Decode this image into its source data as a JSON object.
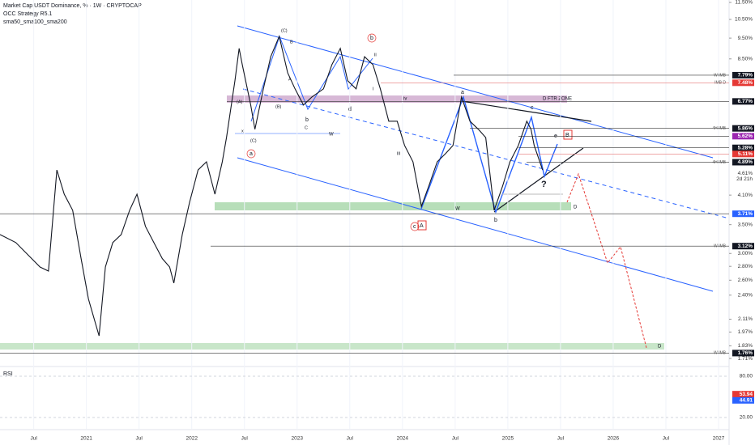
{
  "chart_data": {
    "type": "line",
    "title": "Market Cap USDT Dominance, % · 1W · CRYPTOCAP",
    "subtitles": [
      "OCC Strategy R5.1",
      "sma50_sma100_sma200"
    ],
    "log": true,
    "color": "#131722",
    "xlim": [
      2020.18,
      2027.1
    ],
    "ylim": [
      1.645,
      11.65
    ],
    "xticks": [
      {
        "value": 2020.5,
        "label": "Jul"
      },
      2021,
      {
        "value": 2021.5,
        "label": "Jul"
      },
      2022,
      {
        "value": 2022.5,
        "label": "Jul"
      },
      2023,
      {
        "value": 2023.5,
        "label": "Jul"
      },
      2024,
      {
        "value": 2024.5,
        "label": "Jul"
      },
      2025,
      {
        "value": 2025.5,
        "label": "Jul"
      },
      2026,
      {
        "value": 2026.5,
        "label": "Jul"
      },
      2027
    ],
    "yticks": [
      {
        "value": 11.5,
        "label": "11.50%"
      },
      {
        "value": 10.5,
        "label": "10.50%"
      },
      {
        "value": 9.5,
        "label": "9.50%"
      },
      {
        "value": 8.5,
        "label": "8.50%"
      },
      {
        "value": 4.1,
        "label": "4.10%"
      },
      {
        "value": 3.5,
        "label": "3.50%"
      },
      {
        "value": 3.0,
        "label": "3.00%"
      },
      {
        "value": 2.8,
        "label": "2.80%"
      },
      {
        "value": 2.6,
        "label": "2.60%"
      },
      {
        "value": 2.4,
        "label": "2.40%"
      },
      {
        "value": 2.11,
        "label": "2.11%"
      },
      {
        "value": 1.97,
        "label": "1.97%"
      },
      {
        "value": 1.83,
        "label": "1.83%"
      },
      {
        "value": 1.71,
        "label": "1.71%"
      }
    ],
    "x": [
      2020.18,
      2020.33,
      2020.48,
      2020.56,
      2020.64,
      2020.72,
      2020.79,
      2020.87,
      2020.95,
      2021.02,
      2021.12,
      2021.18,
      2021.25,
      2021.33,
      2021.41,
      2021.48,
      2021.56,
      2021.64,
      2021.72,
      2021.79,
      2021.83,
      2021.91,
      2021.98,
      2022.06,
      2022.14,
      2022.22,
      2022.29,
      2022.33,
      2022.41,
      2022.45,
      2022.48,
      2022.56,
      2022.6,
      2022.68,
      2022.75,
      2022.83,
      2022.91,
      2022.98,
      2023.06,
      2023.14,
      2023.25,
      2023.33,
      2023.41,
      2023.48,
      2023.56,
      2023.64,
      2023.72,
      2023.79,
      2023.87,
      2023.95,
      2024.02,
      2024.1,
      2024.18,
      2024.25,
      2024.33,
      2024.41,
      2024.48,
      2024.56,
      2024.64,
      2024.72,
      2024.79,
      2024.87,
      2024.95,
      2025.02,
      2025.1,
      2025.18,
      2025.22,
      2025.25,
      2025.33
    ],
    "values": [
      3.32,
      3.18,
      2.92,
      2.79,
      2.73,
      4.69,
      4.12,
      3.78,
      2.92,
      2.35,
      1.93,
      2.79,
      3.18,
      3.32,
      3.78,
      4.12,
      3.47,
      3.18,
      2.92,
      2.79,
      2.56,
      3.32,
      3.95,
      4.69,
      4.9,
      4.12,
      4.9,
      5.58,
      7.56,
      8.99,
      8.24,
      6.64,
      5.83,
      7.24,
      8.6,
      9.59,
      7.89,
      7.24,
      6.64,
      6.93,
      7.24,
      8.24,
      8.99,
      7.56,
      7.24,
      8.6,
      8.24,
      7.24,
      6.09,
      6.09,
      5.35,
      4.9,
      3.86,
      4.3,
      4.9,
      5.12,
      5.35,
      6.93,
      6.09,
      5.83,
      5.58,
      3.78,
      4.3,
      4.9,
      5.35,
      6.09,
      5.83,
      5.35,
      4.69
    ],
    "levels": [
      {
        "value": 7.79,
        "label": "7.79%",
        "name": "W IMB",
        "color": "#131722"
      },
      {
        "value": 7.48,
        "label": "7.48%",
        "name": "IMB D",
        "color": "#e53935"
      },
      {
        "value": 6.77,
        "label": "6.77%",
        "color": "#131722"
      },
      {
        "value": 5.86,
        "label": "5.86%",
        "name": "4H IMB",
        "color": "#131722"
      },
      {
        "value": 5.62,
        "label": "5.62%",
        "color": "#9c27b0"
      },
      {
        "value": 5.28,
        "label": "5.28%",
        "color": "#131722"
      },
      {
        "value": 5.11,
        "label": "5.11%",
        "color": "#e53935"
      },
      {
        "value": 4.89,
        "label": "4.89%",
        "name": "4H IMB",
        "color": "#131722"
      },
      {
        "value": 3.71,
        "label": "3.71%",
        "color": "#2962ff"
      },
      {
        "value": 3.12,
        "label": "3.12%",
        "name": "W IMB",
        "color": "#131722"
      },
      {
        "value": 1.76,
        "label": "1.76%",
        "name": "W IMB",
        "color": "#131722"
      }
    ],
    "last_price": {
      "value": 4.61,
      "label": "4.61%",
      "countdown": "2d 21h"
    },
    "annotations": [
      "D FTR ZONE",
      "(C)",
      "(B)",
      "(A)",
      "(C)",
      "B",
      "A",
      "C",
      "b",
      "d",
      "ii",
      "i",
      "iii",
      "iv",
      "W",
      "W",
      "x",
      "a",
      "b",
      "c",
      "e",
      "?",
      "A",
      "B",
      "D",
      "a",
      "c",
      "b",
      "D"
    ],
    "rsi": {
      "title": "RSI",
      "ylim": [
        3.5,
        91.8
      ],
      "yticks": [
        {
          "value": 80,
          "label": "80.00"
        },
        {
          "value": 20,
          "label": "20.00"
        }
      ],
      "readings": [
        {
          "value": 53.94,
          "label": "53.94",
          "color": "#e53935"
        },
        {
          "value": 44.91,
          "label": "44.91",
          "color": "#2962ff"
        }
      ]
    }
  }
}
